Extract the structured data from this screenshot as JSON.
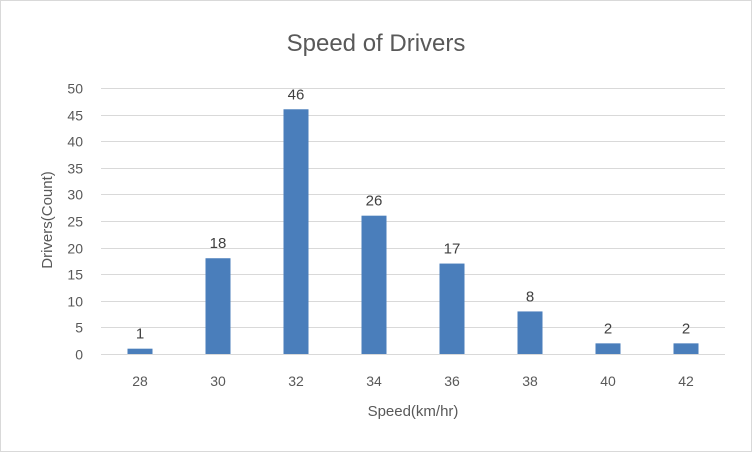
{
  "chart_data": {
    "type": "bar",
    "title": "Speed of Drivers",
    "xlabel": "Speed(km/hr)",
    "ylabel": "Drivers(Count)",
    "categories": [
      "28",
      "30",
      "32",
      "34",
      "36",
      "38",
      "40",
      "42"
    ],
    "values": [
      1,
      18,
      46,
      26,
      17,
      8,
      2,
      2
    ],
    "ylim": [
      0,
      50
    ],
    "yticks": [
      0,
      5,
      10,
      15,
      20,
      25,
      30,
      35,
      40,
      45,
      50
    ],
    "grid": true,
    "legend": "none",
    "data_labels": true,
    "bar_color": "#4a7ebb",
    "grid_color": "#d9d9d9"
  }
}
